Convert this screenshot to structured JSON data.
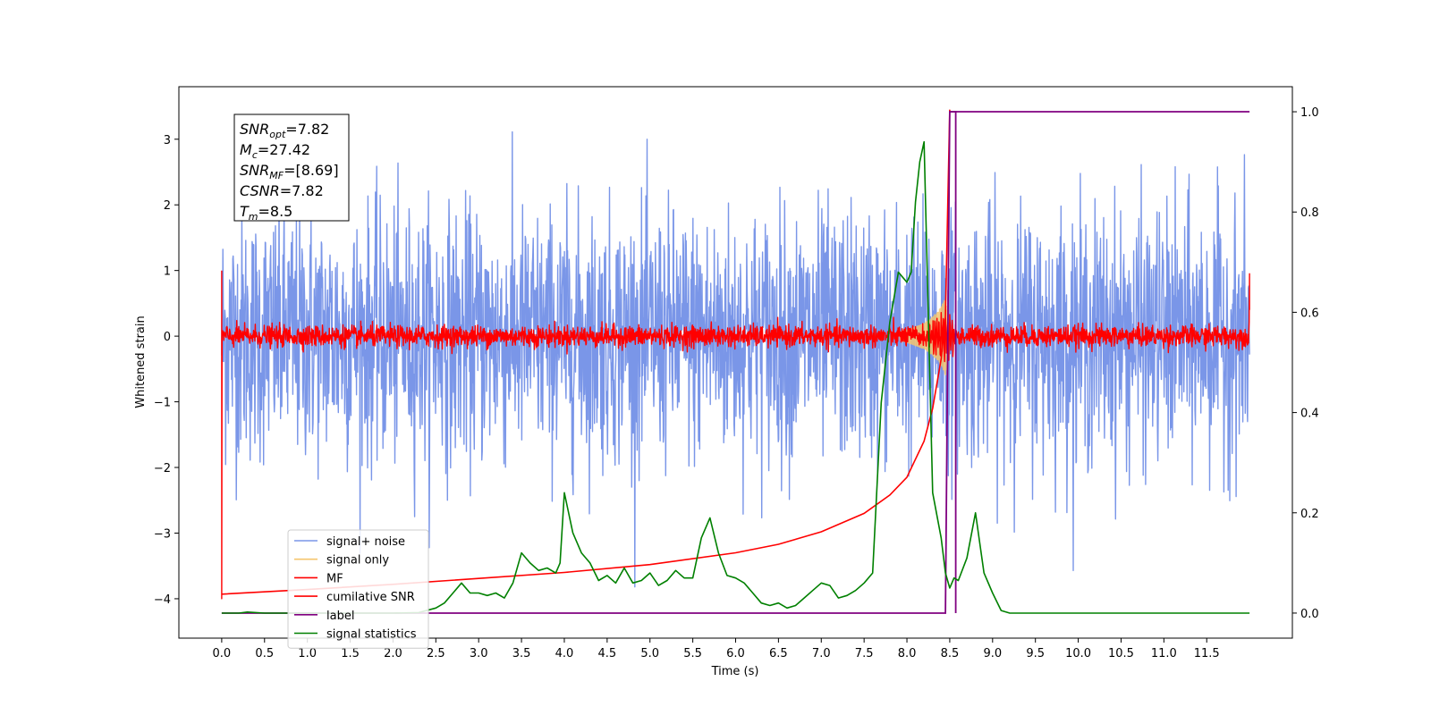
{
  "chart_data": {
    "type": "line",
    "xlabel": "Time (s)",
    "ylabel": "Whitened strain",
    "xlim": [
      -0.5,
      12.5
    ],
    "ylim": [
      -4.6,
      3.8
    ],
    "y2lim": [
      -0.05,
      1.05
    ],
    "x_ticks": [
      0.0,
      0.5,
      1.0,
      1.5,
      2.0,
      2.5,
      3.0,
      3.5,
      4.0,
      4.5,
      5.0,
      5.5,
      6.0,
      6.5,
      7.0,
      7.5,
      8.0,
      8.5,
      9.0,
      9.5,
      10.0,
      10.5,
      11.0,
      11.5
    ],
    "x_tick_labels": [
      "0.0",
      "0.5",
      "1.0",
      "1.5",
      "2.0",
      "2.5",
      "3.0",
      "3.5",
      "4.0",
      "4.5",
      "5.0",
      "5.5",
      "6.0",
      "6.5",
      "7.0",
      "7.5",
      "8.0",
      "8.5",
      "9.0",
      "9.5",
      "10.0",
      "10.5",
      "11.0",
      "11.5"
    ],
    "y_ticks": [
      3,
      2,
      1,
      0,
      -1,
      -2,
      -3,
      -4
    ],
    "y_tick_labels": [
      "3",
      "2",
      "1",
      "0",
      "−1",
      "−2",
      "−3",
      "−4"
    ],
    "y2_ticks": [
      1.0,
      0.8,
      0.6,
      0.4,
      0.2,
      0.0
    ],
    "y2_tick_labels": [
      "1.0",
      "0.8",
      "0.6",
      "0.4",
      "0.2",
      "0.0"
    ],
    "grid": false,
    "legend_position": "lower-left",
    "annotation": {
      "position": "top-left",
      "lines": [
        {
          "base": "SNR",
          "sub": "opt",
          "value": "=7.82"
        },
        {
          "base": "M",
          "sub": "c",
          "value": "=27.42"
        },
        {
          "base": "SNR",
          "sub": "MF",
          "value": "=[8.69]"
        },
        {
          "base": "CSNR",
          "sub": "",
          "value": "=7.82"
        },
        {
          "base": "T",
          "sub": "m",
          "value": "=8.5"
        }
      ]
    },
    "series": [
      {
        "name": "signal+ noise",
        "color": "#7a96e8",
        "axis": "left",
        "style": "noise",
        "x_range": [
          0.0,
          12.0
        ],
        "envelope_upper": 2.3,
        "envelope_lower": -2.2,
        "extreme_max": 3.4,
        "extreme_min": -3.9
      },
      {
        "name": "signal only",
        "color": "#f5c66e",
        "axis": "left",
        "style": "chirp",
        "x": [
          7.9,
          8.0,
          8.1,
          8.2,
          8.3,
          8.4,
          8.45,
          8.5
        ],
        "amplitude": [
          0.05,
          0.1,
          0.15,
          0.2,
          0.3,
          0.45,
          0.6,
          0.0
        ]
      },
      {
        "name": "MF",
        "color": "#ff0000",
        "axis": "left",
        "style": "noise",
        "x_range": [
          0.0,
          12.0
        ],
        "envelope_upper": 0.2,
        "envelope_lower": -0.15,
        "edge_values": [
          1.0,
          -4.0,
          0.95,
          0.4
        ]
      },
      {
        "name": "cumilative SNR",
        "color": "#ff0000",
        "axis": "left",
        "x": [
          0.0,
          1.0,
          2.0,
          3.0,
          4.0,
          5.0,
          6.0,
          6.5,
          7.0,
          7.5,
          7.8,
          8.0,
          8.2,
          8.3,
          8.4,
          8.45,
          8.5
        ],
        "y": [
          -3.93,
          -3.86,
          -3.78,
          -3.69,
          -3.6,
          -3.48,
          -3.3,
          -3.17,
          -2.98,
          -2.7,
          -2.42,
          -2.15,
          -1.6,
          -1.1,
          -0.35,
          0.3,
          3.45
        ]
      },
      {
        "name": "label",
        "color": "#800080",
        "axis": "right",
        "x": [
          0.0,
          8.45,
          8.5,
          8.55,
          12.0
        ],
        "y": [
          0.0,
          0.0,
          1.0,
          1.0,
          1.0
        ],
        "x2": [
          8.5,
          8.57,
          8.57
        ],
        "y2": [
          1.0,
          1.0,
          0.0
        ]
      },
      {
        "name": "signal statistics",
        "color": "#008000",
        "axis": "right",
        "x": [
          0.0,
          0.2,
          0.3,
          0.5,
          1.0,
          1.5,
          2.0,
          2.3,
          2.5,
          2.6,
          2.7,
          2.8,
          2.9,
          3.0,
          3.1,
          3.2,
          3.3,
          3.4,
          3.5,
          3.6,
          3.7,
          3.8,
          3.9,
          3.95,
          4.0,
          4.1,
          4.2,
          4.3,
          4.4,
          4.5,
          4.6,
          4.7,
          4.8,
          4.9,
          5.0,
          5.1,
          5.2,
          5.3,
          5.4,
          5.5,
          5.6,
          5.7,
          5.8,
          5.9,
          6.0,
          6.1,
          6.2,
          6.3,
          6.4,
          6.5,
          6.6,
          6.7,
          6.8,
          6.9,
          7.0,
          7.1,
          7.2,
          7.3,
          7.4,
          7.5,
          7.6,
          7.7,
          7.8,
          7.9,
          8.0,
          8.05,
          8.1,
          8.15,
          8.2,
          8.3,
          8.4,
          8.45,
          8.5,
          8.55,
          8.6,
          8.7,
          8.8,
          8.9,
          9.0,
          9.1,
          9.2,
          9.3,
          9.4,
          9.5,
          9.6,
          9.8,
          10.0,
          10.5,
          11.0,
          11.5,
          12.0
        ],
        "y": [
          0.0,
          0.0,
          0.002,
          0.0,
          0.0,
          0.0,
          0.0,
          0.001,
          0.01,
          0.02,
          0.04,
          0.06,
          0.04,
          0.04,
          0.035,
          0.04,
          0.03,
          0.06,
          0.12,
          0.1,
          0.085,
          0.09,
          0.08,
          0.1,
          0.24,
          0.16,
          0.12,
          0.1,
          0.065,
          0.075,
          0.06,
          0.09,
          0.06,
          0.065,
          0.08,
          0.055,
          0.065,
          0.085,
          0.07,
          0.07,
          0.15,
          0.19,
          0.12,
          0.075,
          0.07,
          0.06,
          0.04,
          0.02,
          0.015,
          0.02,
          0.01,
          0.015,
          0.03,
          0.045,
          0.06,
          0.055,
          0.03,
          0.035,
          0.045,
          0.06,
          0.08,
          0.42,
          0.58,
          0.68,
          0.66,
          0.68,
          0.82,
          0.9,
          0.94,
          0.24,
          0.15,
          0.08,
          0.05,
          0.07,
          0.065,
          0.11,
          0.2,
          0.08,
          0.04,
          0.005,
          0.0,
          0.0,
          0.0,
          0.0,
          0.0,
          0.0,
          0.0,
          0.0,
          0.0,
          0.0,
          0.0
        ]
      }
    ]
  }
}
